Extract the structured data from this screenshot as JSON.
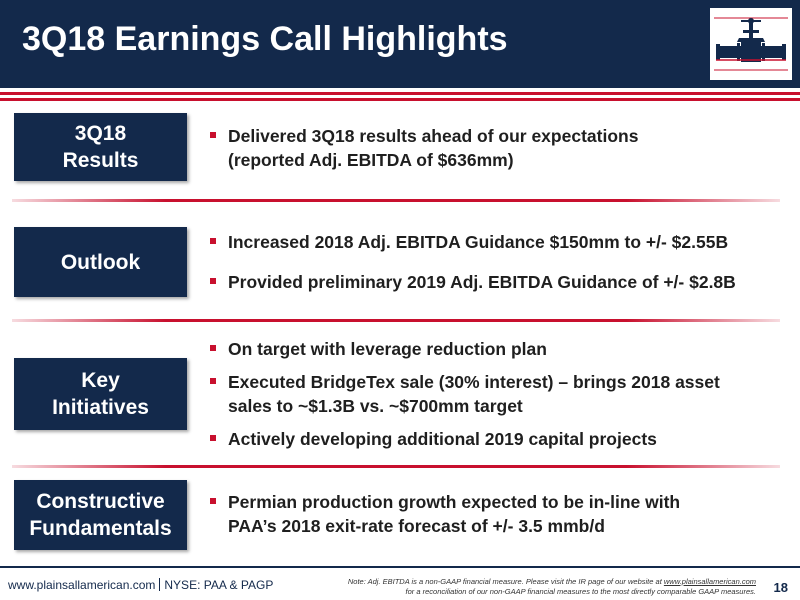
{
  "header": {
    "title": "3Q18 Earnings Call Highlights",
    "logo_icon": "plains-valve-logo-icon"
  },
  "sections": [
    {
      "label": "3Q18\nResults",
      "bullets": [
        "Delivered 3Q18 results ahead of our expectations\n(reported Adj. EBITDA of $636mm)"
      ]
    },
    {
      "label": "Outlook",
      "bullets": [
        "Increased 2018 Adj. EBITDA Guidance $150mm to +/- $2.55B",
        "Provided preliminary 2019 Adj. EBITDA Guidance of +/- $2.8B"
      ]
    },
    {
      "label": "Key\nInitiatives",
      "bullets": [
        "On target with leverage reduction plan",
        "Executed BridgeTex sale (30% interest) – brings 2018 asset\nsales to ~$1.3B vs. ~$700mm target",
        "Actively developing additional 2019 capital projects"
      ]
    },
    {
      "label": "Constructive\nFundamentals",
      "bullets": [
        "Permian production growth expected to be in-line with\nPAA’s 2018 exit-rate forecast of +/- 3.5 mmb/d"
      ]
    }
  ],
  "footer": {
    "website": "www.plainsallamerican.com",
    "tickers": "NYSE: PAA & PAGP",
    "note_prefix": "Note: Adj. EBITDA is a non-GAAP financial measure. Please visit the IR page of our website at ",
    "note_link": "www.plainsallamerican.com",
    "note_suffix": "for a reconciliation of our non-GAAP financial measures to the most directly comparable GAAP measures.",
    "page_number": "18"
  },
  "colors": {
    "navy": "#13294b",
    "red": "#c8102e"
  }
}
